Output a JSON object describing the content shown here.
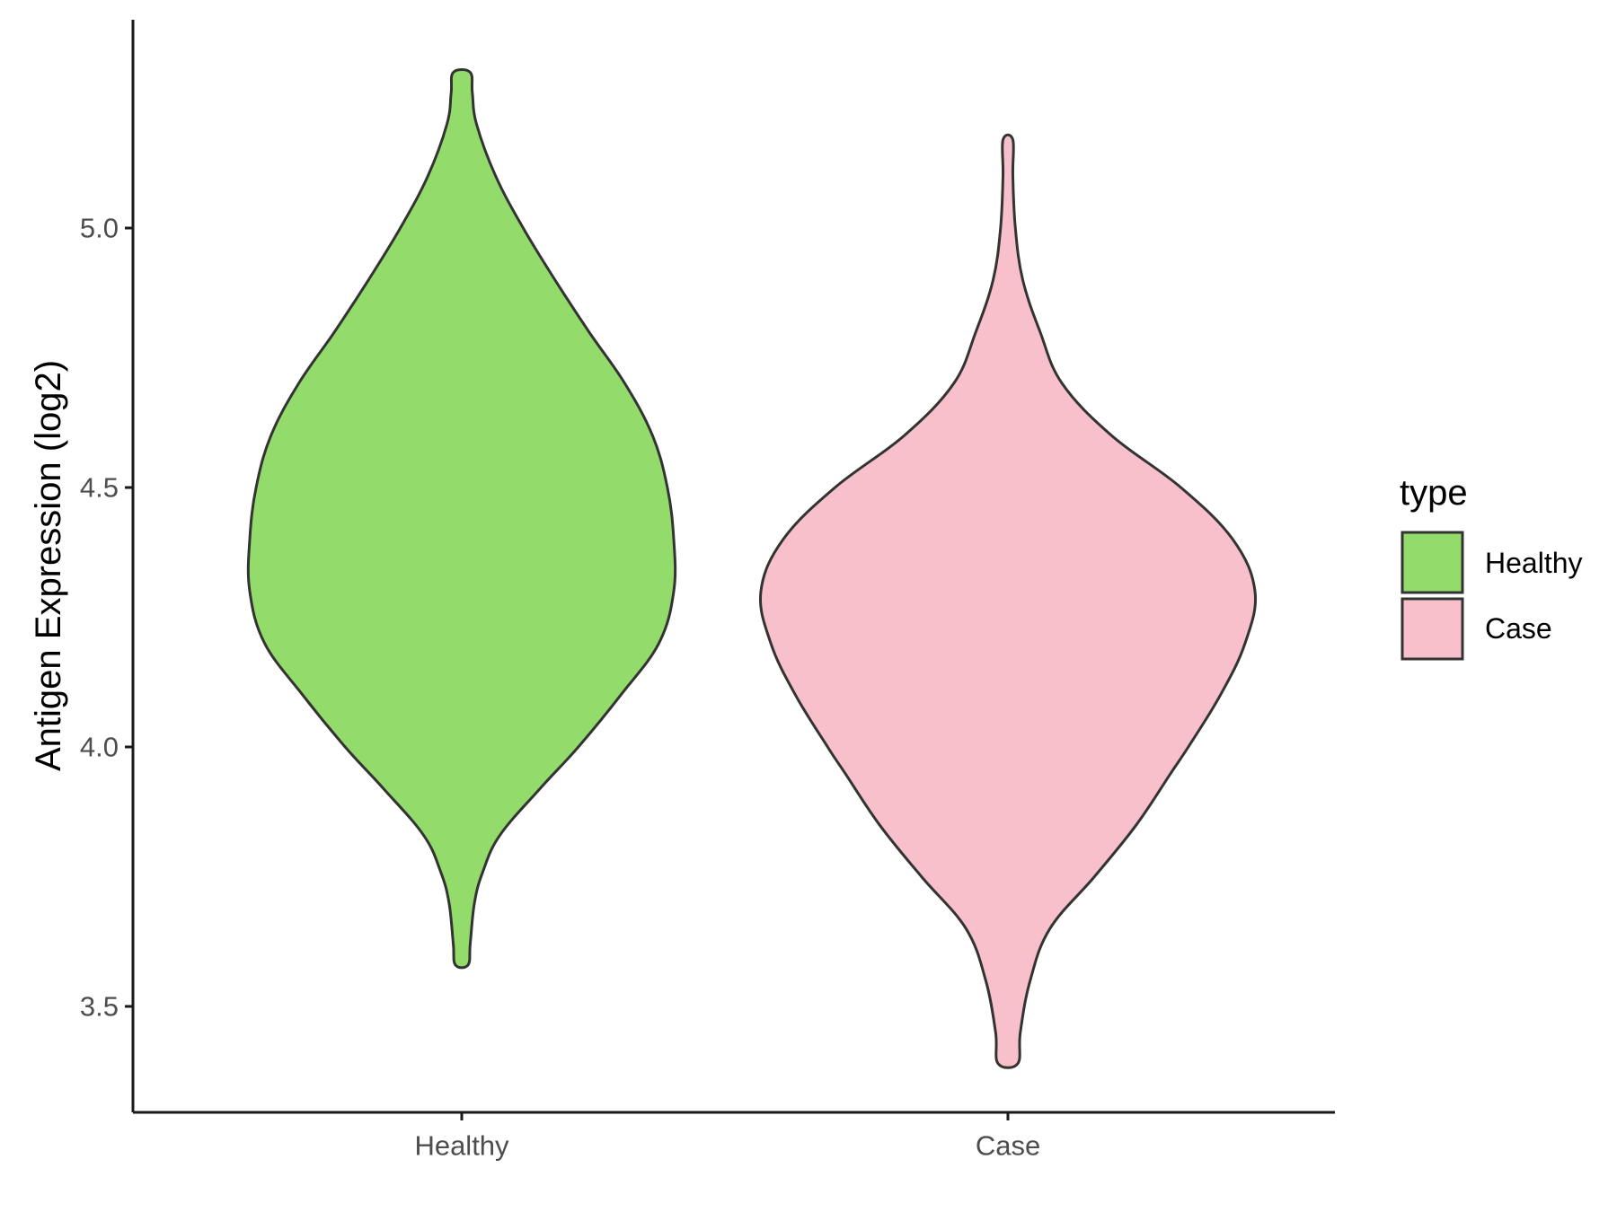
{
  "chart_data": {
    "type": "violin",
    "title": "",
    "xlabel": "",
    "ylabel": "Antigen Expression (log2)",
    "ylim": [
      3.3,
      5.4
    ],
    "yticks": [
      "3.5",
      "4.0",
      "4.5",
      "5.0"
    ],
    "categories": [
      "Healthy",
      "Case"
    ],
    "grid": false,
    "legend": {
      "title": "type",
      "placement": "right",
      "entries": [
        {
          "label": "Healthy",
          "color": "#93DC6B"
        },
        {
          "label": "Case",
          "color": "#F7C0CB"
        }
      ]
    },
    "series": [
      {
        "name": "Healthy",
        "color": "#93DC6B",
        "min": 3.58,
        "max": 5.3,
        "density_profile": [
          [
            3.58,
            0.03
          ],
          [
            3.62,
            0.04
          ],
          [
            3.7,
            0.06
          ],
          [
            3.76,
            0.1
          ],
          [
            3.83,
            0.18
          ],
          [
            3.92,
            0.37
          ],
          [
            4.0,
            0.55
          ],
          [
            4.1,
            0.75
          ],
          [
            4.2,
            0.93
          ],
          [
            4.3,
            1.0
          ],
          [
            4.4,
            1.0
          ],
          [
            4.5,
            0.97
          ],
          [
            4.6,
            0.9
          ],
          [
            4.7,
            0.77
          ],
          [
            4.8,
            0.6
          ],
          [
            4.9,
            0.44
          ],
          [
            5.0,
            0.29
          ],
          [
            5.1,
            0.16
          ],
          [
            5.2,
            0.07
          ],
          [
            5.26,
            0.05
          ],
          [
            5.3,
            0.04
          ]
        ]
      },
      {
        "name": "Case",
        "color": "#F7C0CB",
        "min": 3.39,
        "max": 5.17,
        "density_profile": [
          [
            3.39,
            0.04
          ],
          [
            3.45,
            0.05
          ],
          [
            3.55,
            0.09
          ],
          [
            3.65,
            0.17
          ],
          [
            3.75,
            0.35
          ],
          [
            3.85,
            0.52
          ],
          [
            3.95,
            0.66
          ],
          [
            4.0,
            0.73
          ],
          [
            4.1,
            0.86
          ],
          [
            4.2,
            0.96
          ],
          [
            4.3,
            1.0
          ],
          [
            4.4,
            0.91
          ],
          [
            4.5,
            0.7
          ],
          [
            4.6,
            0.42
          ],
          [
            4.7,
            0.22
          ],
          [
            4.8,
            0.13
          ],
          [
            4.9,
            0.06
          ],
          [
            5.0,
            0.03
          ],
          [
            5.1,
            0.02
          ],
          [
            5.17,
            0.02
          ]
        ]
      }
    ]
  }
}
